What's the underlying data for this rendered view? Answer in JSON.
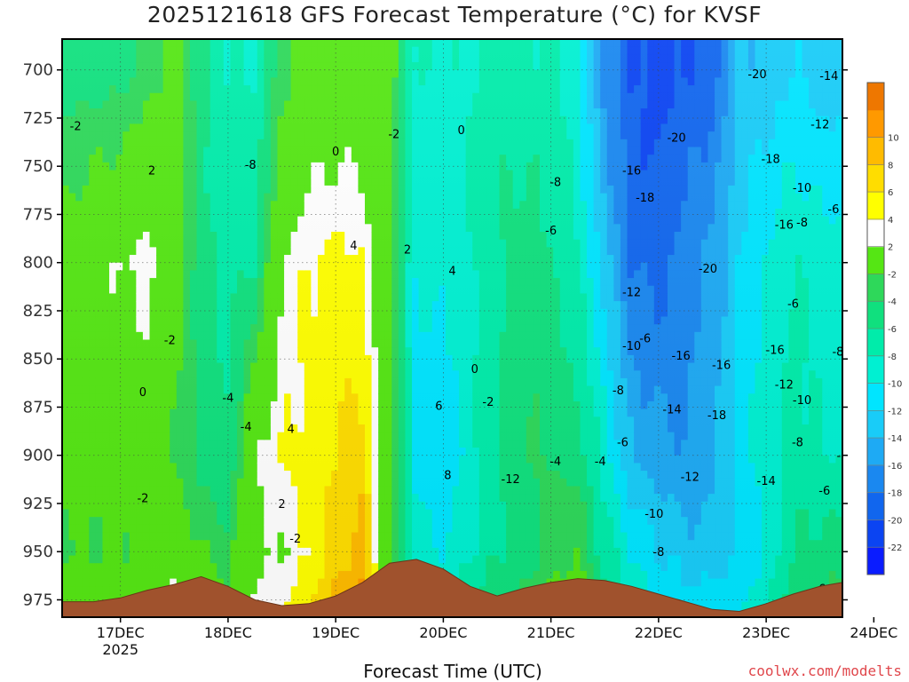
{
  "header": {
    "title": "2025121618 GFS Forecast Temperature (°C) for KVSF"
  },
  "footer": {
    "xlabel": "Forecast Time (UTC)",
    "credit": "coolwx.com/modelts"
  },
  "chart_data": {
    "type": "heatmap",
    "title": "2025121618 GFS Forecast Temperature (°C) for KVSF",
    "xlabel": "Forecast Time (UTC)",
    "ylabel": "Pressure (hPa)",
    "x_ticks": [
      "17DEC",
      "18DEC",
      "19DEC",
      "20DEC",
      "21DEC",
      "22DEC",
      "23DEC",
      "24DEC"
    ],
    "x_sublabel": "2025",
    "xlim_hours": [
      -13,
      161
    ],
    "y_ticks": [
      700,
      725,
      750,
      775,
      800,
      825,
      850,
      875,
      900,
      925,
      950,
      975
    ],
    "ylim": [
      984,
      684
    ],
    "colorbar": {
      "levels": [
        -24,
        -22,
        -20,
        -18,
        -16,
        -14,
        -12,
        -10,
        -8,
        -6,
        -4,
        -2,
        2,
        4,
        6,
        8,
        10,
        12
      ],
      "labels": [
        "-22",
        "-20",
        "-18",
        "-16",
        "-14",
        "-12",
        "-10",
        "-8",
        "-6",
        "-4",
        "-2",
        "2",
        "4",
        "6",
        "8",
        "10"
      ],
      "colors": [
        "#0a1cff",
        "#0b44f2",
        "#1166ee",
        "#1a88f0",
        "#1eaaf4",
        "#19ccf8",
        "#00e5ff",
        "#00f0d2",
        "#00ecaa",
        "#10e07e",
        "#2ed85a",
        "#55e614",
        "#ffffff",
        "#ffff00",
        "#ffdd00",
        "#ffbb00",
        "#ff9900",
        "#ee7700"
      ]
    },
    "terrain_color": "#a0522d",
    "terrain_hpa": [
      {
        "h": -13,
        "p": 976
      },
      {
        "h": -6,
        "p": 976
      },
      {
        "h": 0,
        "p": 974
      },
      {
        "h": 6,
        "p": 970
      },
      {
        "h": 12,
        "p": 967
      },
      {
        "h": 18,
        "p": 963
      },
      {
        "h": 24,
        "p": 968
      },
      {
        "h": 30,
        "p": 975
      },
      {
        "h": 36,
        "p": 978
      },
      {
        "h": 42,
        "p": 977
      },
      {
        "h": 48,
        "p": 973
      },
      {
        "h": 54,
        "p": 966
      },
      {
        "h": 60,
        "p": 956
      },
      {
        "h": 66,
        "p": 954
      },
      {
        "h": 72,
        "p": 959
      },
      {
        "h": 78,
        "p": 968
      },
      {
        "h": 84,
        "p": 973
      },
      {
        "h": 90,
        "p": 969
      },
      {
        "h": 96,
        "p": 966
      },
      {
        "h": 102,
        "p": 964
      },
      {
        "h": 108,
        "p": 965
      },
      {
        "h": 114,
        "p": 968
      },
      {
        "h": 120,
        "p": 972
      },
      {
        "h": 126,
        "p": 976
      },
      {
        "h": 132,
        "p": 980
      },
      {
        "h": 138,
        "p": 981
      },
      {
        "h": 144,
        "p": 977
      },
      {
        "h": 150,
        "p": 972
      },
      {
        "h": 156,
        "p": 968
      },
      {
        "h": 161,
        "p": 966
      }
    ],
    "temperature_profiles": [
      {
        "h": -12,
        "p700": -5,
        "p800": -1,
        "p900": -1,
        "p950": -2
      },
      {
        "h": -6,
        "p700": -5,
        "p800": 1,
        "p900": -1,
        "p950": -2
      },
      {
        "h": 0,
        "p700": -5,
        "p800": 2,
        "p900": 0,
        "p950": -2
      },
      {
        "h": 6,
        "p700": -3,
        "p800": 3,
        "p900": 0,
        "p950": -1
      },
      {
        "h": 12,
        "p700": -1,
        "p800": 0,
        "p900": -2,
        "p950": 1
      },
      {
        "h": 18,
        "p700": -5,
        "p800": -5,
        "p900": -5,
        "p950": -2
      },
      {
        "h": 24,
        "p700": -8,
        "p800": -7,
        "p900": -6,
        "p950": -3
      },
      {
        "h": 30,
        "p700": -8,
        "p800": -6,
        "p900": 2,
        "p950": 1
      },
      {
        "h": 36,
        "p700": -3,
        "p800": 2,
        "p900": 4,
        "p950": 2
      },
      {
        "h": 42,
        "p700": -1,
        "p800": 4,
        "p900": 5,
        "p950": 4
      },
      {
        "h": 48,
        "p700": -1,
        "p800": 5,
        "p900": 6,
        "p950": 7
      },
      {
        "h": 54,
        "p700": 0,
        "p800": 4,
        "p900": 7,
        "p950": 9
      },
      {
        "h": 60,
        "p700": -1,
        "p800": -2,
        "p900": -1,
        "p950": -2
      },
      {
        "h": 66,
        "p700": -8,
        "p800": -10,
        "p900": -11,
        "p950": -9
      },
      {
        "h": 72,
        "p700": -9,
        "p800": -9,
        "p900": -12,
        "p950": -10
      },
      {
        "h": 78,
        "p700": -8,
        "p800": -8,
        "p900": -9,
        "p950": -8
      },
      {
        "h": 84,
        "p700": -7,
        "p800": -6,
        "p900": -6,
        "p950": -6
      },
      {
        "h": 90,
        "p700": -7,
        "p800": -5,
        "p900": -4,
        "p950": -5
      },
      {
        "h": 96,
        "p700": -8,
        "p800": -6,
        "p900": -4,
        "p950": -3
      },
      {
        "h": 102,
        "p700": -9,
        "p800": -8,
        "p900": -5,
        "p950": -2
      },
      {
        "h": 108,
        "p700": -17,
        "p800": -13,
        "p900": -9,
        "p950": -7
      },
      {
        "h": 114,
        "p700": -20,
        "p800": -18,
        "p900": -14,
        "p950": -10
      },
      {
        "h": 120,
        "p700": -21,
        "p800": -19,
        "p900": -15,
        "p950": -12
      },
      {
        "h": 126,
        "p700": -20,
        "p800": -17,
        "p900": -16,
        "p950": -13
      },
      {
        "h": 132,
        "p700": -19,
        "p800": -15,
        "p900": -15,
        "p950": -13
      },
      {
        "h": 138,
        "p700": -14,
        "p800": -12,
        "p900": -11,
        "p950": -12
      },
      {
        "h": 144,
        "p700": -13,
        "p800": -10,
        "p900": -9,
        "p950": -10
      },
      {
        "h": 150,
        "p700": -12,
        "p800": -8,
        "p900": -7,
        "p950": -6
      },
      {
        "h": 156,
        "p700": -13,
        "p800": -9,
        "p900": -8,
        "p950": -5
      },
      {
        "h": 161,
        "p700": -13,
        "p800": -9,
        "p900": -8,
        "p950": -5
      }
    ],
    "contour_labels": [
      {
        "text": "-2",
        "h": -10,
        "p": 729
      },
      {
        "text": "2",
        "h": 7,
        "p": 752
      },
      {
        "text": "-8",
        "h": 29,
        "p": 749
      },
      {
        "text": "0",
        "h": 48,
        "p": 742
      },
      {
        "text": "-2",
        "h": 61,
        "p": 733
      },
      {
        "text": "0",
        "h": 76,
        "p": 731
      },
      {
        "text": "4",
        "h": 52,
        "p": 791
      },
      {
        "text": "2",
        "h": 64,
        "p": 793
      },
      {
        "text": "4",
        "h": 74,
        "p": 804
      },
      {
        "text": "-2",
        "h": 11,
        "p": 840
      },
      {
        "text": "0",
        "h": 79,
        "p": 855
      },
      {
        "text": "0",
        "h": 5,
        "p": 867
      },
      {
        "text": "-4",
        "h": 24,
        "p": 870
      },
      {
        "text": "-2",
        "h": 82,
        "p": 872
      },
      {
        "text": "6",
        "h": 71,
        "p": 874
      },
      {
        "text": "-4",
        "h": 28,
        "p": 885
      },
      {
        "text": "4",
        "h": 38,
        "p": 886
      },
      {
        "text": "8",
        "h": 73,
        "p": 910
      },
      {
        "text": "-2",
        "h": 5,
        "p": 922
      },
      {
        "text": "2",
        "h": 36,
        "p": 925
      },
      {
        "text": "-2",
        "h": 39,
        "p": 943
      },
      {
        "text": "-8",
        "h": 97,
        "p": 758
      },
      {
        "text": "-6",
        "h": 96,
        "p": 783
      },
      {
        "text": "-6",
        "h": 117,
        "p": 839
      },
      {
        "text": "-12",
        "h": 114,
        "p": 815
      },
      {
        "text": "-10",
        "h": 114,
        "p": 843
      },
      {
        "text": "-8",
        "h": 111,
        "p": 866
      },
      {
        "text": "-6",
        "h": 112,
        "p": 893
      },
      {
        "text": "-4",
        "h": 107,
        "p": 903
      },
      {
        "text": "-4",
        "h": 97,
        "p": 903
      },
      {
        "text": "-12",
        "h": 87,
        "p": 912
      },
      {
        "text": "-16",
        "h": 114,
        "p": 752
      },
      {
        "text": "-18",
        "h": 117,
        "p": 766
      },
      {
        "text": "-20",
        "h": 124,
        "p": 735
      },
      {
        "text": "-20",
        "h": 131,
        "p": 803
      },
      {
        "text": "-20",
        "h": 142,
        "p": 702
      },
      {
        "text": "-18",
        "h": 145,
        "p": 746
      },
      {
        "text": "-16",
        "h": 148,
        "p": 780
      },
      {
        "text": "-16",
        "h": 146,
        "p": 845
      },
      {
        "text": "-16",
        "h": 125,
        "p": 848
      },
      {
        "text": "-16",
        "h": 134,
        "p": 853
      },
      {
        "text": "-14",
        "h": 123,
        "p": 876
      },
      {
        "text": "-18",
        "h": 133,
        "p": 879
      },
      {
        "text": "-12",
        "h": 127,
        "p": 911
      },
      {
        "text": "-14",
        "h": 144,
        "p": 913
      },
      {
        "text": "-10",
        "h": 119,
        "p": 930
      },
      {
        "text": "-8",
        "h": 120,
        "p": 950
      },
      {
        "text": "-14",
        "h": 158,
        "p": 703
      },
      {
        "text": "-12",
        "h": 156,
        "p": 728
      },
      {
        "text": "-10",
        "h": 152,
        "p": 761
      },
      {
        "text": "-8",
        "h": 152,
        "p": 779
      },
      {
        "text": "-6",
        "h": 159,
        "p": 772
      },
      {
        "text": "-6",
        "h": 150,
        "p": 821
      },
      {
        "text": "-8",
        "h": 160,
        "p": 846
      },
      {
        "text": "-12",
        "h": 148,
        "p": 863
      },
      {
        "text": "-10",
        "h": 152,
        "p": 871
      },
      {
        "text": "-8",
        "h": 151,
        "p": 893
      },
      {
        "text": "-6",
        "h": 157,
        "p": 918
      },
      {
        "text": "-8",
        "h": 161,
        "p": 900
      },
      {
        "text": "-12",
        "h": 151,
        "p": 974
      },
      {
        "text": "-6",
        "h": 156,
        "p": 969
      }
    ]
  }
}
